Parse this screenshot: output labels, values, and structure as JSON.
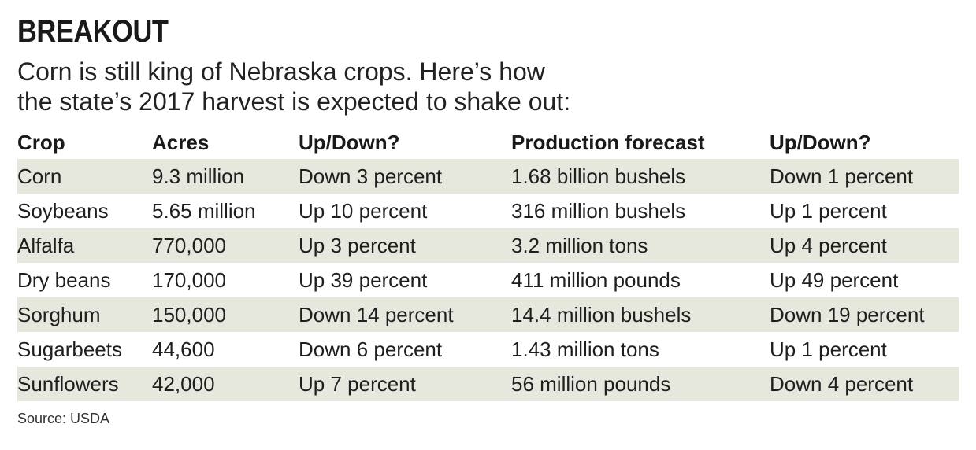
{
  "title": "BREAKOUT",
  "subtitle_line1": "Corn is still king of Nebraska crops. Here’s how",
  "subtitle_line2": "the state’s 2017 harvest is expected to shake out:",
  "table": {
    "headers": [
      "Crop",
      "Acres",
      "Up/Down?",
      "Production forecast",
      "Up/Down?"
    ],
    "rows": [
      [
        "Corn",
        "9.3 million",
        "Down 3 percent",
        "1.68 billion bushels",
        "Down 1 percent"
      ],
      [
        "Soybeans",
        "5.65 million",
        "Up 10 percent",
        "316 million bushels",
        "Up 1 percent"
      ],
      [
        "Alfalfa",
        "770,000",
        "Up 3 percent",
        "3.2 million tons",
        "Up 4 percent"
      ],
      [
        "Dry beans",
        "170,000",
        "Up 39 percent",
        "411 million pounds",
        "Up 49 percent"
      ],
      [
        "Sorghum",
        "150,000",
        "Down 14 percent",
        "14.4 million bushels",
        "Down 19 percent"
      ],
      [
        "Sugarbeets",
        "44,600",
        "Down 6 percent",
        "1.43 million tons",
        "Up 1 percent"
      ],
      [
        "Sunflowers",
        "42,000",
        "Up 7 percent",
        "56 million pounds",
        "Down 4 percent"
      ]
    ]
  },
  "source": "Source: USDA",
  "colors": {
    "stripe": "#e6e8de",
    "text": "#1a1a1a"
  }
}
